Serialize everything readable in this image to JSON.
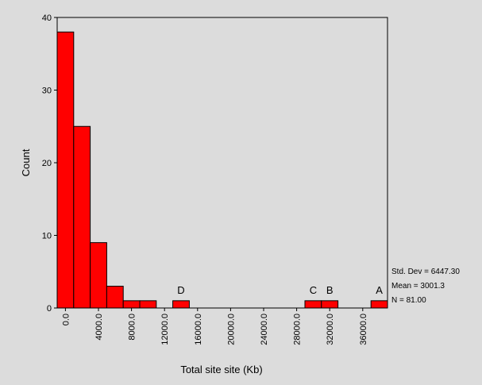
{
  "chart_data": {
    "type": "bar",
    "subtype": "histogram",
    "xlabel": "Total site site (Kb)",
    "ylabel": "Count",
    "ylim": [
      0,
      40
    ],
    "y_ticks": [
      0,
      10,
      20,
      30,
      40
    ],
    "x_ticks": [
      "0.0",
      "4000.0",
      "8000.0",
      "12000.0",
      "16000.0",
      "20000.0",
      "24000.0",
      "28000.0",
      "32000.0",
      "36000.0"
    ],
    "bin_width": 2000,
    "bins": [
      {
        "x": 0,
        "count": 38
      },
      {
        "x": 2000,
        "count": 25
      },
      {
        "x": 4000,
        "count": 9
      },
      {
        "x": 6000,
        "count": 3
      },
      {
        "x": 8000,
        "count": 1
      },
      {
        "x": 10000,
        "count": 1
      },
      {
        "x": 12000,
        "count": 0
      },
      {
        "x": 14000,
        "count": 1
      },
      {
        "x": 16000,
        "count": 0
      },
      {
        "x": 18000,
        "count": 0
      },
      {
        "x": 20000,
        "count": 0
      },
      {
        "x": 22000,
        "count": 0
      },
      {
        "x": 24000,
        "count": 0
      },
      {
        "x": 26000,
        "count": 0
      },
      {
        "x": 28000,
        "count": 0
      },
      {
        "x": 30000,
        "count": 1
      },
      {
        "x": 32000,
        "count": 1
      },
      {
        "x": 34000,
        "count": 0
      },
      {
        "x": 36000,
        "count": 0
      },
      {
        "x": 38000,
        "count": 1
      }
    ],
    "annotations": [
      {
        "label": "D",
        "x": 14000
      },
      {
        "label": "C",
        "x": 30000
      },
      {
        "label": "B",
        "x": 32000
      },
      {
        "label": "A",
        "x": 38000
      }
    ],
    "stats": {
      "std_dev": "Std. Dev = 6447.30",
      "mean": "Mean = 3001.3",
      "n": "N = 81.00"
    },
    "colors": {
      "bar_fill": "#ff0000",
      "bar_stroke": "#000000",
      "background": "#dcdcdc"
    }
  }
}
